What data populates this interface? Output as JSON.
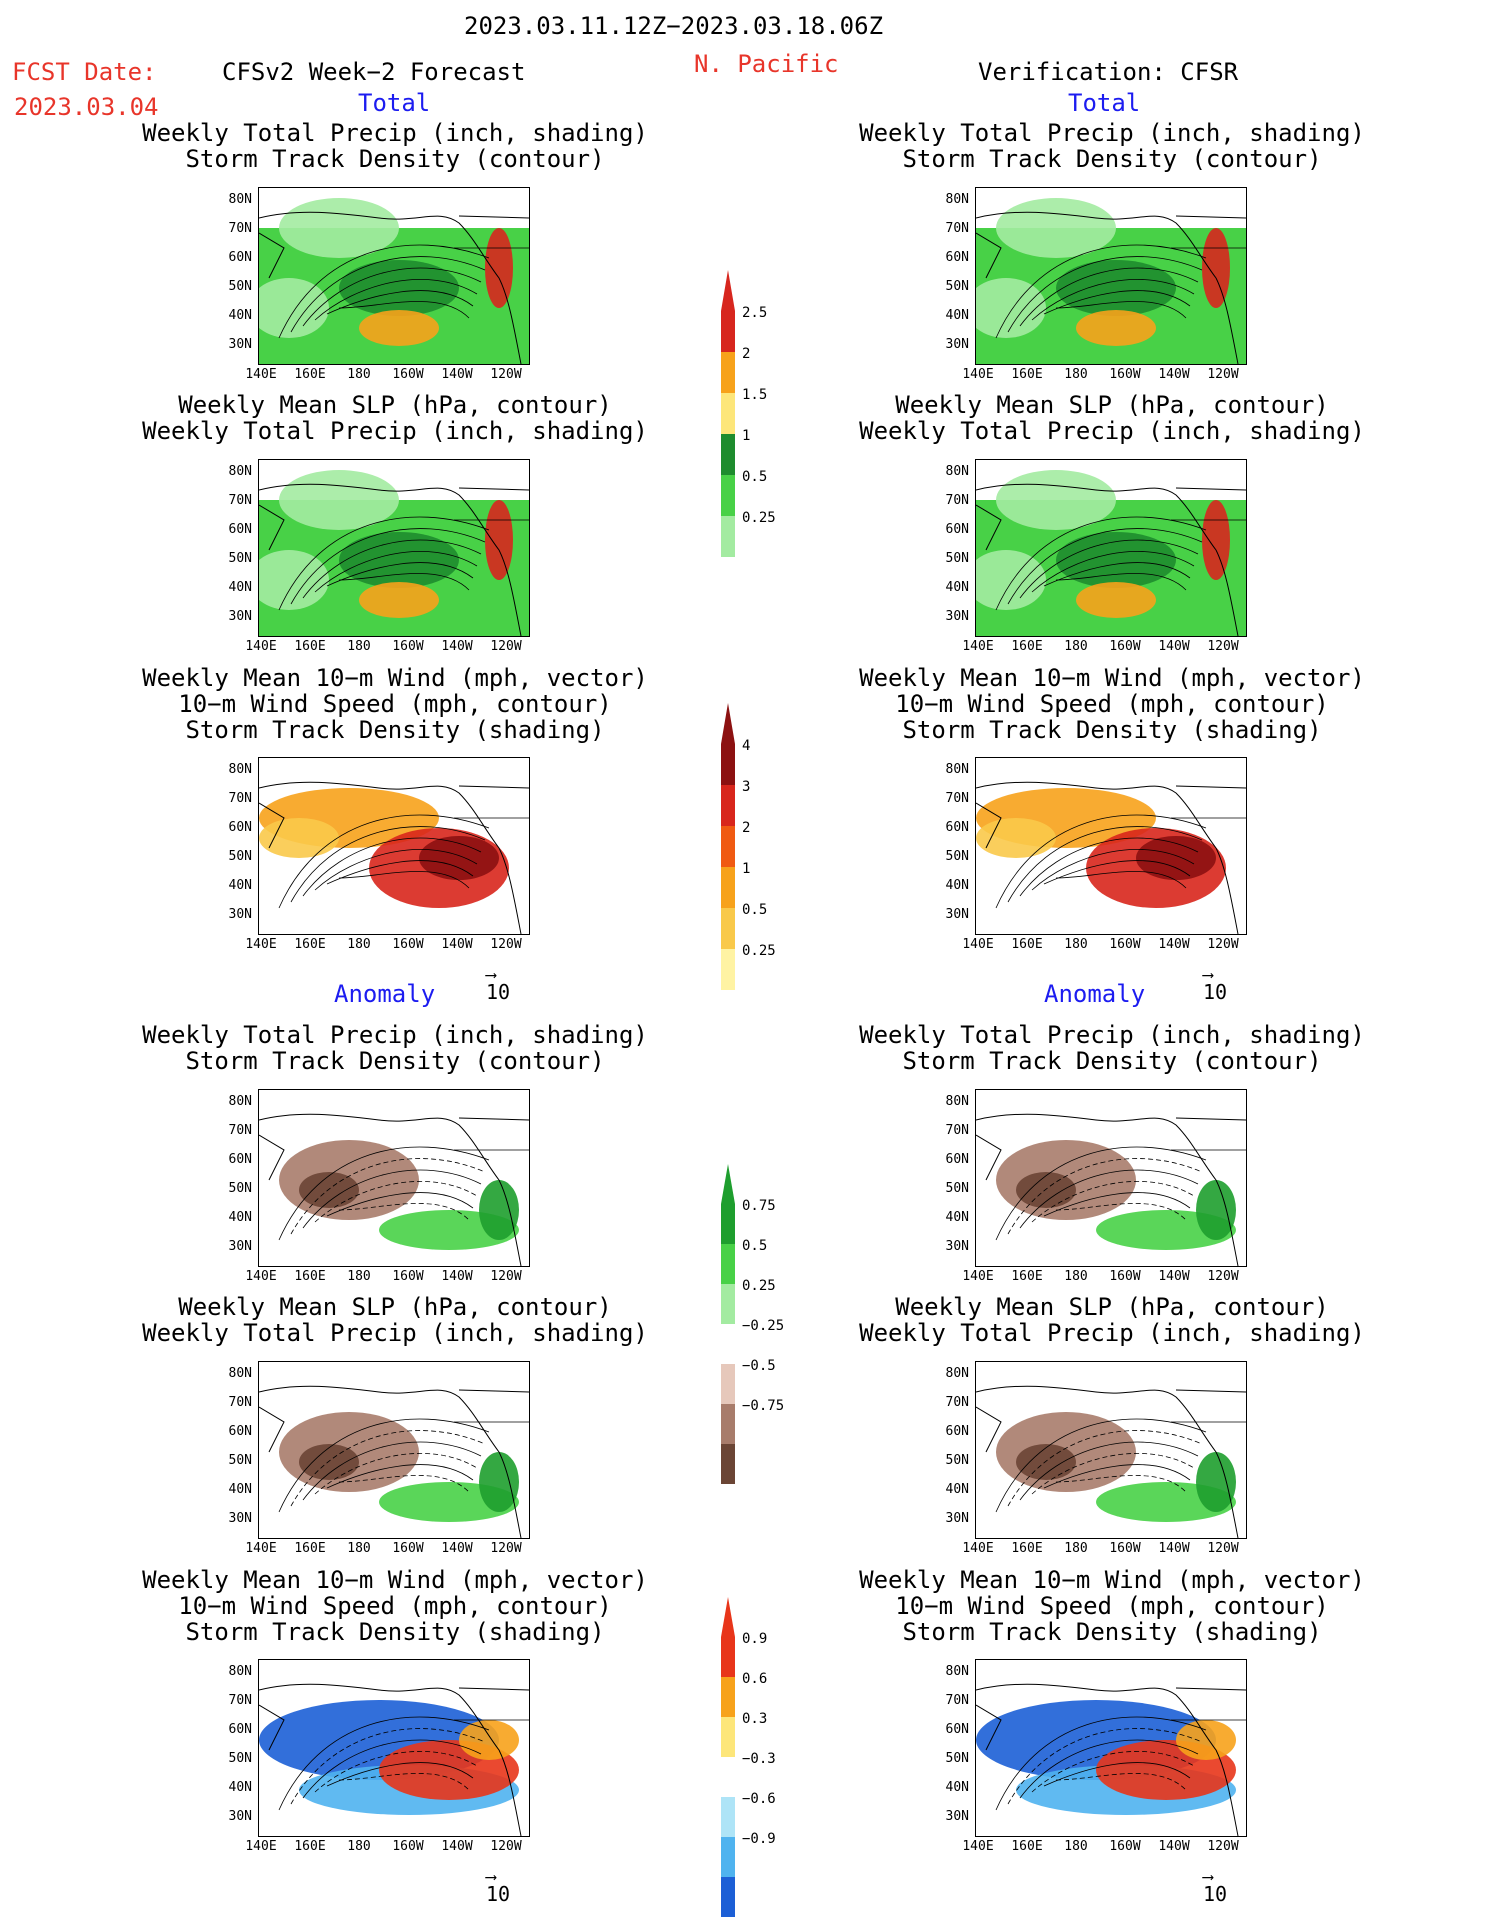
{
  "header": {
    "date_range": "2023.03.11.12Z−2023.03.18.06Z",
    "fcst_label": "FCST Date:",
    "fcst_date": "2023.03.04",
    "left_title": "CFSv2 Week−2 Forecast",
    "region": "N. Pacific",
    "right_title": "Verification: CFSR"
  },
  "sections": {
    "total": "Total",
    "anomaly": "Anomaly"
  },
  "panel_titles": {
    "precip_storm": [
      "Weekly Total Precip (inch, shading)",
      "Storm Track Density (contour)"
    ],
    "slp_precip": [
      "Weekly Mean SLP (hPa, contour)",
      "Weekly Total Precip (inch, shading)"
    ],
    "wind": [
      "Weekly Mean 10−m Wind (mph, vector)",
      "10−m Wind Speed (mph, contour)",
      "Storm Track Density (shading)"
    ]
  },
  "axes": {
    "lat_ticks": [
      "80N",
      "70N",
      "60N",
      "50N",
      "40N",
      "30N"
    ],
    "lon_ticks": [
      "140E",
      "160E",
      "180",
      "160W",
      "140W",
      "120W"
    ]
  },
  "vector_reference": "10",
  "colorbars": {
    "precip_total": {
      "labels": [
        "2.5",
        "2",
        "1.5",
        "1",
        "0.5",
        "0.25"
      ],
      "colors": [
        "#d7261e",
        "#f7a21b",
        "#fde67a",
        "#1e8c2e",
        "#48d147",
        "#a3eba1"
      ]
    },
    "storm_total": {
      "labels": [
        "4",
        "3",
        "2",
        "1",
        "0.5",
        "0.25"
      ],
      "colors": [
        "#8c1111",
        "#d8261c",
        "#f05a12",
        "#f7a21b",
        "#f9c94a",
        "#fff3a3"
      ]
    },
    "precip_anom": {
      "labels": [
        "0.75",
        "0.5",
        "0.25",
        "−0.25",
        "−0.5",
        "−0.75"
      ],
      "colors": [
        "#1e9e2e",
        "#48d147",
        "#a3eba1",
        "#ffffff",
        "#e6c8bb",
        "#a87c6b",
        "#6b4535"
      ]
    },
    "storm_anom": {
      "labels": [
        "0.9",
        "0.6",
        "0.3",
        "−0.3",
        "−0.6",
        "−0.9"
      ],
      "colors": [
        "#e8351a",
        "#f7a21b",
        "#fde67a",
        "#ffffff",
        "#aee4f7",
        "#4fb3ef",
        "#1c5fd6"
      ]
    }
  }
}
